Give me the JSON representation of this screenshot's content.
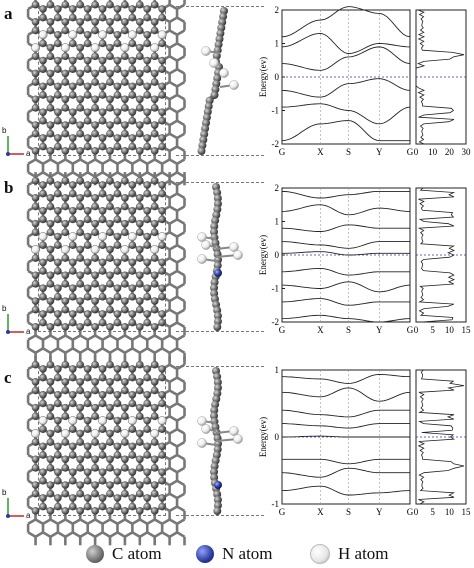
{
  "panels": [
    {
      "label": "a",
      "band": {
        "yticks": [
          "2",
          "1",
          "0",
          "-1",
          "-2"
        ],
        "xticks": [
          "G",
          "X",
          "S",
          "Y",
          "G"
        ],
        "ylabel": "Energy(ev)"
      },
      "dos": {
        "xticks": [
          "0",
          "10",
          "20",
          "30"
        ]
      },
      "axes": {
        "b": "b",
        "a": "a"
      }
    },
    {
      "label": "b",
      "band": {
        "yticks": [
          "2",
          "1",
          "0",
          "-1",
          "-2"
        ],
        "xticks": [
          "G",
          "X",
          "S",
          "Y",
          "G"
        ],
        "ylabel": "Energy(ev)"
      },
      "dos": {
        "xticks": [
          "0",
          "5",
          "10",
          "15"
        ]
      },
      "axes": {
        "b": "b",
        "a": "a"
      }
    },
    {
      "label": "c",
      "band": {
        "yticks": [
          "1",
          "0",
          "-1"
        ],
        "xticks": [
          "G",
          "X",
          "S",
          "Y",
          "G"
        ],
        "ylabel": "Energy(ev)"
      },
      "dos": {
        "xticks": [
          "0",
          "5",
          "10",
          "15"
        ]
      },
      "axes": {
        "b": "b",
        "a": "a"
      }
    }
  ],
  "legend": {
    "c": "C atom",
    "n": "N  atom",
    "h": "H atom"
  },
  "colors": {
    "carbon": "#6e6e6e",
    "nitrogen": "#2a3a9a",
    "hydrogen": "#f0f0f0",
    "fermi": "#2a3aa0"
  }
}
